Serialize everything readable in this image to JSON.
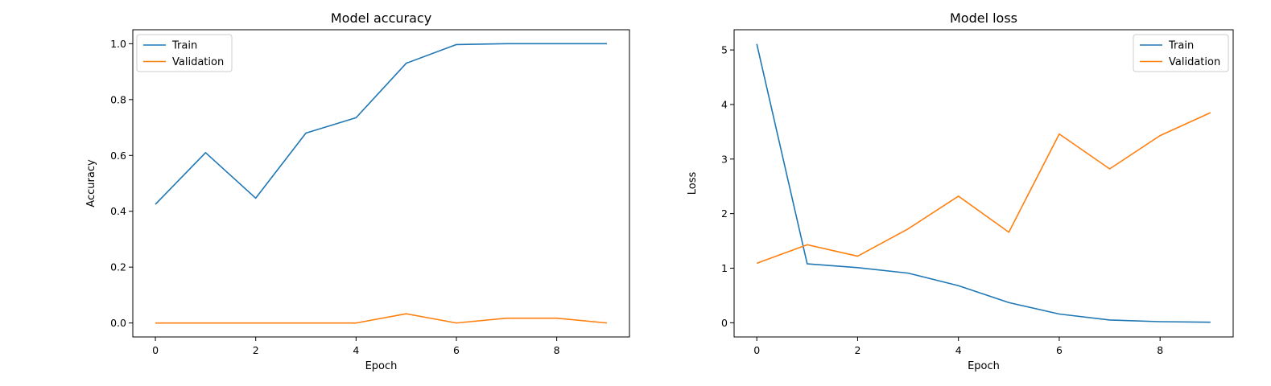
{
  "chart_data": [
    {
      "type": "line",
      "title": "Model accuracy",
      "xlabel": "Epoch",
      "ylabel": "Accuracy",
      "xlim": [
        -0.45,
        9.45
      ],
      "ylim": [
        -0.05,
        1.05
      ],
      "xticks": [
        0,
        2,
        4,
        6,
        8
      ],
      "yticks": [
        0.0,
        0.2,
        0.4,
        0.6,
        0.8,
        1.0
      ],
      "xtick_labels": [
        "0",
        "2",
        "4",
        "6",
        "8"
      ],
      "ytick_labels": [
        "0.0",
        "0.2",
        "0.4",
        "0.6",
        "0.8",
        "1.0"
      ],
      "grid": false,
      "legend_position": "top-left",
      "x": [
        0,
        1,
        2,
        3,
        4,
        5,
        6,
        7,
        8,
        9
      ],
      "series": [
        {
          "name": "Train",
          "color": "#1f77b4",
          "values": [
            0.425,
            0.61,
            0.447,
            0.68,
            0.735,
            0.93,
            0.997,
            1.0,
            1.0,
            1.0
          ]
        },
        {
          "name": "Validation",
          "color": "#ff7f0e",
          "values": [
            0.0,
            0.0,
            0.0,
            0.0,
            0.0,
            0.033,
            0.0,
            0.017,
            0.017,
            0.0
          ]
        }
      ]
    },
    {
      "type": "line",
      "title": "Model loss",
      "xlabel": "Epoch",
      "ylabel": "Loss",
      "xlim": [
        -0.45,
        9.45
      ],
      "ylim": [
        -0.26,
        5.37
      ],
      "xticks": [
        0,
        2,
        4,
        6,
        8
      ],
      "yticks": [
        0,
        1,
        2,
        3,
        4,
        5
      ],
      "xtick_labels": [
        "0",
        "2",
        "4",
        "6",
        "8"
      ],
      "ytick_labels": [
        "0",
        "1",
        "2",
        "3",
        "4",
        "5"
      ],
      "grid": false,
      "legend_position": "top-right",
      "x": [
        0,
        1,
        2,
        3,
        4,
        5,
        6,
        7,
        8,
        9
      ],
      "series": [
        {
          "name": "Train",
          "color": "#1f77b4",
          "values": [
            5.11,
            1.08,
            1.01,
            0.91,
            0.68,
            0.37,
            0.16,
            0.05,
            0.02,
            0.01
          ]
        },
        {
          "name": "Validation",
          "color": "#ff7f0e",
          "values": [
            1.09,
            1.43,
            1.22,
            1.72,
            2.32,
            1.66,
            3.46,
            2.82,
            3.43,
            3.85
          ]
        }
      ]
    }
  ]
}
